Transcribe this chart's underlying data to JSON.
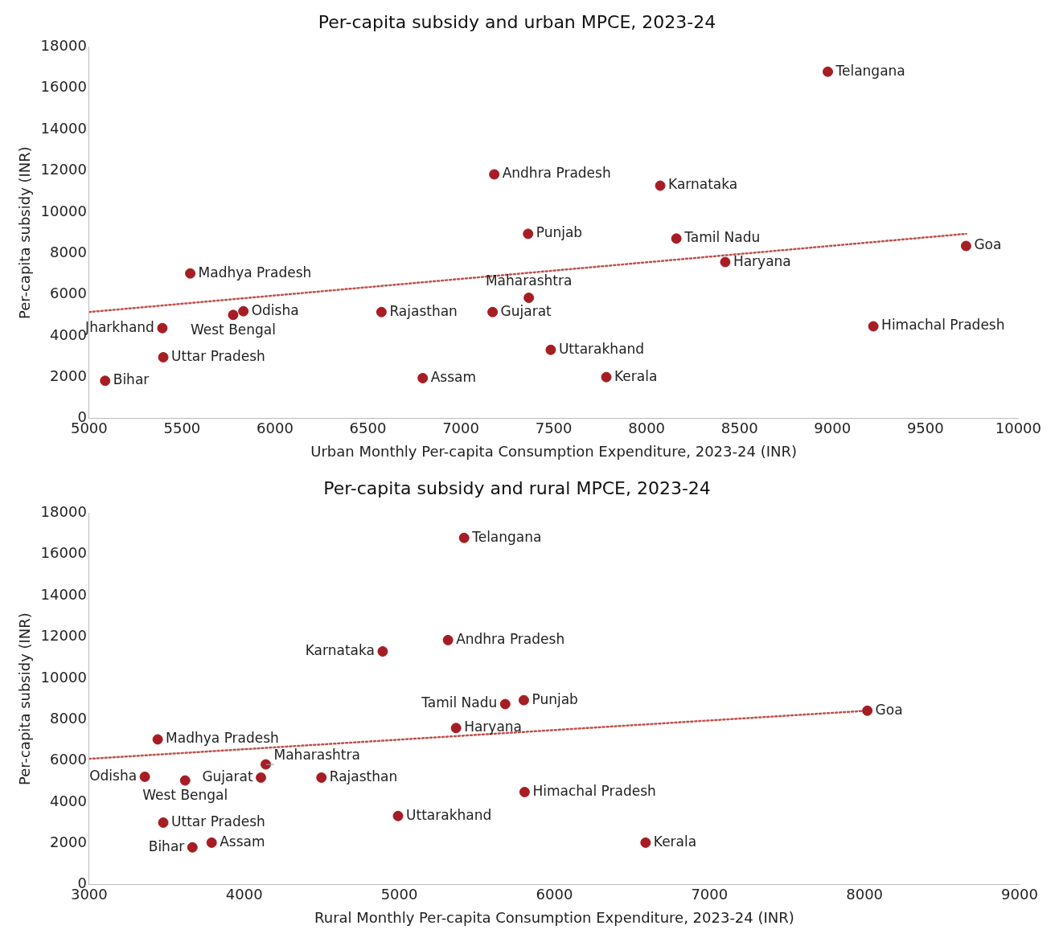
{
  "chart_data": [
    {
      "type": "scatter",
      "title": "Per-capita subsidy and urban MPCE, 2023-24",
      "xlabel": "Urban Monthly Per-capita Consumption Expenditure, 2023-24 (INR)",
      "ylabel": "Per-capita subsidy (INR)",
      "xlim": [
        5000,
        10000
      ],
      "xticks": [
        5000,
        5500,
        6000,
        6500,
        7000,
        7500,
        8000,
        8500,
        9000,
        9500,
        10000
      ],
      "ylim": [
        0,
        18000
      ],
      "yticks": [
        0,
        2000,
        4000,
        6000,
        8000,
        10000,
        12000,
        14000,
        16000,
        18000
      ],
      "grid": false,
      "legend": false,
      "series": [
        {
          "type": "scatter",
          "marker": "circle",
          "color": "#a61d24",
          "x": [
            8975,
            7180,
            8073,
            7362,
            8160,
            8423,
            9719,
            9220,
            5544,
            5830,
            5775,
            5394,
            5399,
            5086,
            6573,
            7171,
            7366,
            7484,
            7783,
            6795
          ],
          "values": [
            16800,
            11830,
            11280,
            8950,
            8720,
            7580,
            8360,
            4470,
            7030,
            5200,
            5020,
            4380,
            2970,
            1830,
            5160,
            5160,
            5850,
            3330,
            2010,
            1960
          ]
        },
        {
          "type": "line",
          "marker": "none",
          "color": "#c0504d",
          "line_style": "dotted",
          "x": [
            5000,
            9720
          ],
          "values": [
            5160,
            8950
          ]
        }
      ],
      "annotations": [
        {
          "text": "Telangana",
          "x": 8975,
          "y": 16800
        },
        {
          "text": "Andhra Pradesh",
          "x": 7180,
          "y": 11830
        },
        {
          "text": "Karnataka",
          "x": 8073,
          "y": 11280
        },
        {
          "text": "Punjab",
          "x": 7362,
          "y": 8950
        },
        {
          "text": "Tamil Nadu",
          "x": 8160,
          "y": 8720
        },
        {
          "text": "Haryana",
          "x": 8423,
          "y": 7580
        },
        {
          "text": "Goa",
          "x": 9719,
          "y": 8360
        },
        {
          "text": "Himachal Pradesh",
          "x": 9220,
          "y": 4470
        },
        {
          "text": "Madhya Pradesh",
          "x": 5544,
          "y": 7030
        },
        {
          "text": "Odisha",
          "x": 5830,
          "y": 5200
        },
        {
          "text": "West Bengal",
          "x": 5775,
          "y": 5020
        },
        {
          "text": "Jharkhand",
          "x": 5394,
          "y": 4380
        },
        {
          "text": "Uttar Pradesh",
          "x": 5399,
          "y": 2970
        },
        {
          "text": "Bihar",
          "x": 5086,
          "y": 1830
        },
        {
          "text": "Rajasthan",
          "x": 6573,
          "y": 5160
        },
        {
          "text": "Gujarat",
          "x": 7171,
          "y": 5160
        },
        {
          "text": "Maharashtra",
          "x": 7366,
          "y": 5850
        },
        {
          "text": "Uttarakhand",
          "x": 7484,
          "y": 3330
        },
        {
          "text": "Kerala",
          "x": 7783,
          "y": 2010
        },
        {
          "text": "Assam",
          "x": 6795,
          "y": 1960
        }
      ]
    },
    {
      "type": "scatter",
      "title": "Per-capita subsidy and rural MPCE, 2023-24",
      "xlabel": "Rural Monthly Per-capita Consumption Expenditure, 2023-24 (INR)",
      "ylabel": "Per-capita subsidy (INR)",
      "xlim": [
        3000,
        9000
      ],
      "xticks": [
        3000,
        4000,
        5000,
        6000,
        7000,
        8000,
        9000
      ],
      "ylim": [
        0,
        18000
      ],
      "yticks": [
        0,
        2000,
        4000,
        6000,
        8000,
        10000,
        12000,
        14000,
        16000,
        18000
      ],
      "grid": false,
      "legend": false,
      "series": [
        {
          "type": "scatter",
          "marker": "circle",
          "color": "#a61d24",
          "x": [
            5418,
            5314,
            4893,
            5803,
            5683,
            5366,
            8018,
            5808,
            6588,
            3442,
            3359,
            3619,
            4139,
            4108,
            4498,
            4992,
            3478,
            3666,
            3790
          ],
          "values": [
            16800,
            11850,
            11300,
            8940,
            8750,
            7590,
            8430,
            4490,
            2040,
            7040,
            5230,
            5050,
            5830,
            5190,
            5190,
            3330,
            3010,
            1810,
            2040
          ]
        },
        {
          "type": "line",
          "marker": "none",
          "color": "#c0504d",
          "line_style": "dotted",
          "x": [
            3000,
            8018
          ],
          "values": [
            6100,
            8430
          ]
        }
      ],
      "annotations": [
        {
          "text": "Telangana",
          "x": 5418,
          "y": 16800
        },
        {
          "text": "Andhra Pradesh",
          "x": 5314,
          "y": 11850
        },
        {
          "text": "Karnataka",
          "x": 4893,
          "y": 11300
        },
        {
          "text": "Punjab",
          "x": 5803,
          "y": 8940
        },
        {
          "text": "Tamil Nadu",
          "x": 5683,
          "y": 8750
        },
        {
          "text": "Haryana",
          "x": 5366,
          "y": 7590
        },
        {
          "text": "Goa",
          "x": 8018,
          "y": 8430
        },
        {
          "text": "Himachal Pradesh",
          "x": 5808,
          "y": 4490
        },
        {
          "text": "Kerala",
          "x": 6588,
          "y": 2040
        },
        {
          "text": "Madhya Pradesh",
          "x": 3442,
          "y": 7040
        },
        {
          "text": "Odisha",
          "x": 3359,
          "y": 5230
        },
        {
          "text": "West Bengal",
          "x": 3619,
          "y": 5050
        },
        {
          "text": "Maharashtra",
          "x": 4139,
          "y": 5830
        },
        {
          "text": "Gujarat",
          "x": 4108,
          "y": 5190
        },
        {
          "text": "Rajasthan",
          "x": 4498,
          "y": 5190
        },
        {
          "text": "Uttarakhand",
          "x": 4992,
          "y": 3330
        },
        {
          "text": "Uttar Pradesh",
          "x": 3478,
          "y": 3010
        },
        {
          "text": "Bihar",
          "x": 3666,
          "y": 1810
        },
        {
          "text": "Assam",
          "x": 3790,
          "y": 2040
        }
      ]
    }
  ]
}
